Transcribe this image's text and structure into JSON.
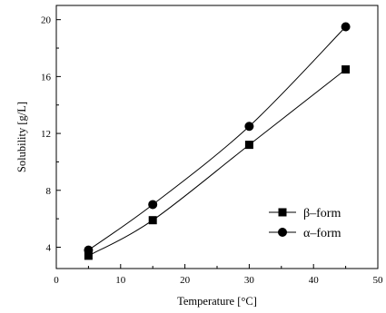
{
  "chart_data": {
    "type": "scatter",
    "xlabel": "Temperature [°C]",
    "ylabel": "Solubility [g/L]",
    "xlim": [
      0,
      50
    ],
    "ylim": [
      2.5,
      21
    ],
    "x_ticks": [
      "0",
      "10",
      "20",
      "30",
      "40",
      "50"
    ],
    "y_ticks": [
      "4",
      "8",
      "12",
      "16",
      "20"
    ],
    "grid": false,
    "legend_position": "lower-right",
    "x": [
      5,
      15,
      30,
      45
    ],
    "series": [
      {
        "name": "β–form",
        "marker": "square",
        "color": "#000000",
        "values": [
          3.4,
          5.9,
          11.2,
          16.5
        ]
      },
      {
        "name": "α–form",
        "marker": "circle",
        "color": "#000000",
        "values": [
          3.8,
          7.0,
          12.5,
          19.5
        ]
      }
    ],
    "trend_lines": true
  }
}
